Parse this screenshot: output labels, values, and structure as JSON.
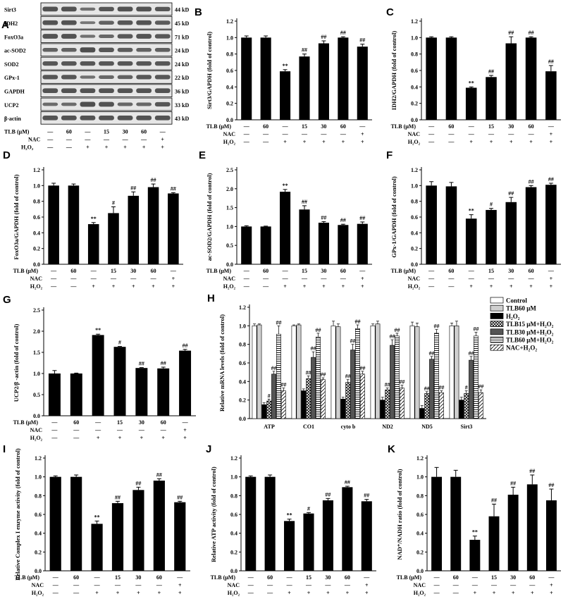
{
  "colors": {
    "bar": "#000000",
    "bg": "#ffffff",
    "blot_bg": "#e6e6e6",
    "band": "#3a3a3a"
  },
  "blot": {
    "letter": "A",
    "rows": [
      {
        "protein": "Sirt3",
        "size": "44 kD",
        "intensity": [
          0.85,
          0.85,
          0.55,
          0.8,
          0.85,
          0.85,
          0.8
        ]
      },
      {
        "protein": "IDH2",
        "size": "45 kD",
        "intensity": [
          0.85,
          0.85,
          0.5,
          0.7,
          0.8,
          0.85,
          0.75
        ]
      },
      {
        "protein": "FoxO3a",
        "size": "71 kD",
        "intensity": [
          0.85,
          0.85,
          0.55,
          0.65,
          0.8,
          0.85,
          0.8
        ]
      },
      {
        "protein": "ac-SOD2",
        "size": "24 kD",
        "intensity": [
          0.7,
          0.7,
          0.9,
          0.8,
          0.75,
          0.7,
          0.72
        ]
      },
      {
        "protein": "SOD2",
        "size": "24 kD",
        "intensity": [
          0.8,
          0.8,
          0.8,
          0.8,
          0.8,
          0.8,
          0.8
        ]
      },
      {
        "protein": "GPx-1",
        "size": "22 kD",
        "intensity": [
          0.8,
          0.8,
          0.55,
          0.65,
          0.7,
          0.8,
          0.8
        ]
      },
      {
        "protein": "GAPDH",
        "size": "36 kD",
        "intensity": [
          0.85,
          0.85,
          0.85,
          0.85,
          0.85,
          0.85,
          0.85
        ]
      },
      {
        "protein": "UCP2",
        "size": "33 kD",
        "intensity": [
          0.6,
          0.6,
          0.9,
          0.85,
          0.65,
          0.65,
          0.8
        ]
      },
      {
        "protein": "β-actin",
        "size": "43 kD",
        "intensity": [
          0.85,
          0.85,
          0.85,
          0.85,
          0.85,
          0.85,
          0.85
        ]
      }
    ]
  },
  "conditions": {
    "rows": [
      {
        "label": "TLB (μM)",
        "values": [
          "—",
          "60",
          "—",
          "15",
          "30",
          "60",
          "—"
        ]
      },
      {
        "label": "NAC",
        "values": [
          "—",
          "—",
          "—",
          "—",
          "—",
          "—",
          "+"
        ]
      },
      {
        "label": "H₂O₂",
        "values": [
          "—",
          "—",
          "+",
          "+",
          "+",
          "+",
          "+"
        ]
      }
    ],
    "rows_alt": [
      {
        "label": "TLB (μM)",
        "values": [
          "—",
          "60",
          "—",
          "15",
          "30",
          "60",
          "—"
        ]
      },
      {
        "label": "NAC",
        "values": [
          "—",
          "—",
          "—",
          "—",
          "—",
          "—",
          "+"
        ]
      },
      {
        "label": "H₂O₂",
        "values": [
          "—",
          "—",
          "+",
          "+",
          "+",
          "+",
          "+"
        ]
      }
    ]
  },
  "chart_data": [
    {
      "id": "B",
      "type": "bar",
      "ylabel": "Sirt3/GAPDH (fold of control)",
      "ylim": [
        0,
        1.2
      ],
      "ticks": [
        "0.0",
        "0.2",
        "0.4",
        "0.6",
        "0.8",
        "1.0",
        "1.2"
      ],
      "values": [
        1.0,
        1.0,
        0.59,
        0.77,
        0.93,
        1.0,
        0.89
      ],
      "errors": [
        0.02,
        0.02,
        0.02,
        0.03,
        0.03,
        0.01,
        0.03
      ],
      "sig": [
        "",
        "",
        "**",
        "##",
        "##",
        "##",
        "##"
      ]
    },
    {
      "id": "C",
      "type": "bar",
      "ylabel": "IDH2/GAPDH (fold of control)",
      "ylim": [
        0,
        1.2
      ],
      "ticks": [
        "0.0",
        "0.2",
        "0.4",
        "0.6",
        "0.8",
        "1.0",
        "1.2"
      ],
      "values": [
        1.0,
        1.0,
        0.39,
        0.52,
        0.93,
        1.0,
        0.59
      ],
      "errors": [
        0.01,
        0.01,
        0.01,
        0.02,
        0.08,
        0.01,
        0.07
      ],
      "sig": [
        "",
        "",
        "**",
        "##",
        "##",
        "##",
        "##"
      ]
    },
    {
      "id": "D",
      "type": "bar",
      "ylabel": "FoxO3a/GAPDH (fold of control)",
      "ylim": [
        0,
        1.2
      ],
      "ticks": [
        "0.0",
        "0.2",
        "0.4",
        "0.6",
        "0.8",
        "1.0",
        "1.2"
      ],
      "values": [
        1.0,
        1.0,
        0.51,
        0.65,
        0.87,
        0.98,
        0.9
      ],
      "errors": [
        0.03,
        0.02,
        0.02,
        0.08,
        0.05,
        0.04,
        0.01
      ],
      "sig": [
        "",
        "",
        "**",
        "#",
        "##",
        "##",
        "##"
      ]
    },
    {
      "id": "E",
      "type": "bar",
      "ylabel": "ac-SOD2/GAPDH (fold of control)",
      "ylim": [
        0,
        2.5
      ],
      "ticks": [
        "0.0",
        "0.5",
        "1.0",
        "1.5",
        "2.0",
        "2.5"
      ],
      "values": [
        1.0,
        1.0,
        1.92,
        1.45,
        1.1,
        1.04,
        1.07
      ],
      "errors": [
        0.02,
        0.01,
        0.06,
        0.1,
        0.03,
        0.02,
        0.05
      ],
      "sig": [
        "",
        "",
        "**",
        "##",
        "##",
        "##",
        "##"
      ]
    },
    {
      "id": "F",
      "type": "bar",
      "ylabel": "GPx-1/GAPDH (fold of control)",
      "ylim": [
        0,
        1.2
      ],
      "ticks": [
        "0.0",
        "0.2",
        "0.4",
        "0.6",
        "0.8",
        "1.0",
        "1.2"
      ],
      "values": [
        1.0,
        0.99,
        0.58,
        0.69,
        0.79,
        0.98,
        1.01
      ],
      "errors": [
        0.05,
        0.05,
        0.05,
        0.02,
        0.06,
        0.02,
        0.02
      ],
      "sig": [
        "",
        "",
        "**",
        "#",
        "##",
        "##",
        "##"
      ]
    },
    {
      "id": "G",
      "type": "bar",
      "ylabel": "UCP2/β -actin (fold of control)",
      "ylim": [
        0,
        2.5
      ],
      "ticks": [
        "0.0",
        "0.5",
        "1.0",
        "1.5",
        "2.0",
        "2.5"
      ],
      "values": [
        1.0,
        1.0,
        1.91,
        1.63,
        1.13,
        1.12,
        1.54
      ],
      "errors": [
        0.07,
        0.01,
        0.02,
        0.01,
        0.01,
        0.03,
        0.03
      ],
      "sig": [
        "",
        "",
        "**",
        "#",
        "##",
        "##",
        "##"
      ]
    },
    {
      "id": "H",
      "type": "bar",
      "ylabel": "Relative mRNA levels (fold of control)",
      "ylim": [
        0,
        1.2
      ],
      "ticks": [
        "0.0",
        "0.2",
        "0.4",
        "0.6",
        "0.8",
        "1.0",
        "1.2"
      ],
      "categories": [
        "ATP",
        "CO1",
        "cyto b",
        "ND2",
        "ND5",
        "Sirt3"
      ],
      "series": [
        {
          "name": "Control",
          "fill": "white",
          "values": [
            1.0,
            1.0,
            1.0,
            1.0,
            1.0,
            1.0
          ],
          "errors": [
            0.02,
            0.01,
            0.05,
            0.02,
            0.04,
            0.03
          ],
          "sig": [
            "",
            "",
            "",
            "",
            "",
            ""
          ]
        },
        {
          "name": "TLB60 μM",
          "fill": "lightgray",
          "values": [
            1.01,
            1.01,
            0.99,
            1.02,
            0.99,
            1.0
          ],
          "errors": [
            0.01,
            0.01,
            0.03,
            0.03,
            0.04,
            0.05
          ],
          "sig": [
            "",
            "",
            "",
            "",
            "",
            ""
          ]
        },
        {
          "name": "H₂O₂",
          "fill": "black",
          "values": [
            0.15,
            0.3,
            0.21,
            0.2,
            0.11,
            0.2
          ],
          "errors": [
            0.02,
            0.02,
            0.02,
            0.03,
            0.03,
            0.03
          ],
          "sig": [
            "",
            "",
            "",
            "",
            "",
            ""
          ]
        },
        {
          "name": "TLB15 μM+H₂O₂",
          "fill": "cross",
          "values": [
            0.19,
            0.43,
            0.39,
            0.31,
            0.27,
            0.27
          ],
          "errors": [
            0.02,
            0.03,
            0.03,
            0.02,
            0.02,
            0.03
          ],
          "sig": [
            "#",
            "##",
            "##",
            "##",
            "##",
            "#"
          ]
        },
        {
          "name": "TLB30 μM+H₂O₂",
          "fill": "darkgray",
          "values": [
            0.48,
            0.66,
            0.74,
            0.79,
            0.64,
            0.63
          ],
          "errors": [
            0.03,
            0.06,
            0.06,
            0.06,
            0.03,
            0.04
          ],
          "sig": [
            "##",
            "##",
            "##",
            "##",
            "##",
            "##"
          ]
        },
        {
          "name": "TLB60 μM+H₂O₂",
          "fill": "hlines",
          "values": [
            0.91,
            0.88,
            0.97,
            0.89,
            0.92,
            0.89
          ],
          "errors": [
            0.09,
            0.04,
            0.04,
            0.03,
            0.04,
            0.04
          ],
          "sig": [
            "##",
            "##",
            "##",
            "##",
            "##",
            "##"
          ]
        },
        {
          "name": "NAC+H₂O₂",
          "fill": "diag",
          "values": [
            0.3,
            0.42,
            0.48,
            0.33,
            0.28,
            0.28
          ],
          "errors": [
            0.03,
            0.02,
            0.03,
            0.03,
            0.02,
            0.03
          ],
          "sig": [
            "##",
            "##",
            "##",
            "##",
            "##",
            "##"
          ]
        }
      ]
    },
    {
      "id": "I",
      "type": "bar",
      "ylabel": "Relative Complex I enzyme activity (fold of control)",
      "ylim": [
        0,
        1.2
      ],
      "ticks": [
        "0.0",
        "0.2",
        "0.4",
        "0.6",
        "0.8",
        "1.0",
        "1.2"
      ],
      "values": [
        1.0,
        1.0,
        0.5,
        0.72,
        0.86,
        0.96,
        0.73
      ],
      "errors": [
        0.01,
        0.02,
        0.03,
        0.02,
        0.03,
        0.02,
        0.01
      ],
      "sig": [
        "",
        "",
        "**",
        "##",
        "##",
        "##",
        "##"
      ]
    },
    {
      "id": "J",
      "type": "bar",
      "ylabel": "Relative ATP activity (fold of control)",
      "ylim": [
        0,
        1.2
      ],
      "ticks": [
        "0.0",
        "0.2",
        "0.4",
        "0.6",
        "0.8",
        "1.0",
        "1.2"
      ],
      "values": [
        1.0,
        1.0,
        0.53,
        0.61,
        0.75,
        0.89,
        0.74
      ],
      "errors": [
        0.01,
        0.02,
        0.02,
        0.01,
        0.02,
        0.01,
        0.02
      ],
      "sig": [
        "",
        "",
        "**",
        "#",
        "##",
        "##",
        "##"
      ]
    },
    {
      "id": "K",
      "type": "bar",
      "ylabel": "NAD⁺/NADH ratio (fold of control)",
      "ylim": [
        0,
        1.2
      ],
      "ticks": [
        "0.0",
        "0.2",
        "0.4",
        "0.6",
        "0.8",
        "1.0",
        "1.2"
      ],
      "values": [
        1.0,
        1.0,
        0.33,
        0.58,
        0.81,
        0.92,
        0.75
      ],
      "errors": [
        0.1,
        0.07,
        0.04,
        0.13,
        0.08,
        0.1,
        0.12
      ],
      "sig": [
        "",
        "",
        "**",
        "##",
        "##",
        "##",
        "##"
      ]
    }
  ]
}
